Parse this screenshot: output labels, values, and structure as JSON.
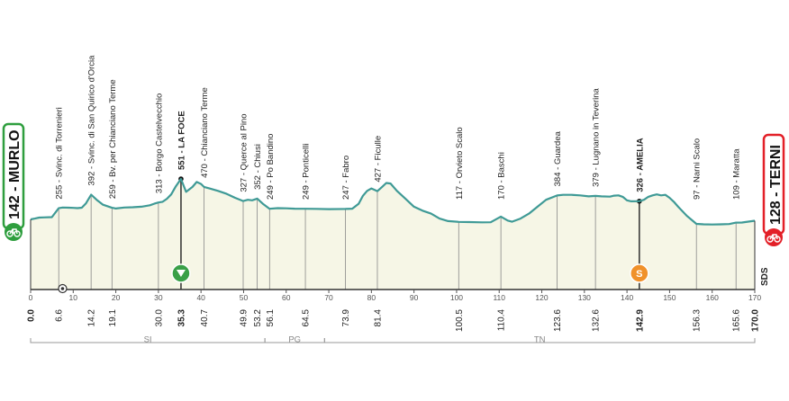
{
  "start": {
    "label": "142 - MURLO",
    "color": "#2e9e3e"
  },
  "finish": {
    "label": "128 - TERNI",
    "color": "#e32028"
  },
  "sponsor_mark": "SDS",
  "colors": {
    "profile_line": "#3f9a96",
    "profile_fill": "#f6f6e6",
    "axis": "#333333",
    "sprint": "#f0912a",
    "kom": "#3aa048"
  },
  "chart_data": {
    "type": "area",
    "title": "",
    "xlabel": "",
    "ylabel": "",
    "xlim": [
      0,
      170
    ],
    "ylim": [
      80,
      560
    ],
    "x_ticks": [
      "0",
      "10",
      "20",
      "30",
      "40",
      "50",
      "60",
      "70",
      "80",
      "90",
      "100",
      "110",
      "120",
      "130",
      "140",
      "150",
      "160",
      "170"
    ],
    "x_tick_values": [
      0,
      10,
      20,
      30,
      40,
      50,
      60,
      70,
      80,
      90,
      100,
      110,
      120,
      130,
      140,
      150,
      160,
      170
    ],
    "profile": [
      [
        0,
        142
      ],
      [
        1,
        150
      ],
      [
        2,
        160
      ],
      [
        3,
        162
      ],
      [
        5,
        165
      ],
      [
        6.6,
        255
      ],
      [
        7.5,
        262
      ],
      [
        9,
        260
      ],
      [
        10,
        258
      ],
      [
        11,
        256
      ],
      [
        12,
        260
      ],
      [
        13,
        305
      ],
      [
        14.2,
        392
      ],
      [
        15.5,
        340
      ],
      [
        17,
        290
      ],
      [
        19.1,
        259
      ],
      [
        20,
        252
      ],
      [
        22,
        262
      ],
      [
        24,
        265
      ],
      [
        26,
        270
      ],
      [
        28,
        285
      ],
      [
        29,
        300
      ],
      [
        30,
        313
      ],
      [
        31,
        320
      ],
      [
        32,
        350
      ],
      [
        33,
        395
      ],
      [
        34,
        470
      ],
      [
        35.3,
        551
      ],
      [
        36.5,
        420
      ],
      [
        38,
        470
      ],
      [
        39,
        520
      ],
      [
        40,
        500
      ],
      [
        40.7,
        470
      ],
      [
        42,
        455
      ],
      [
        44,
        430
      ],
      [
        46,
        400
      ],
      [
        48,
        360
      ],
      [
        49.9,
        327
      ],
      [
        51,
        340
      ],
      [
        52,
        335
      ],
      [
        53.2,
        352
      ],
      [
        54.5,
        300
      ],
      [
        56.1,
        249
      ],
      [
        58,
        256
      ],
      [
        60,
        254
      ],
      [
        62,
        250
      ],
      [
        64.5,
        249
      ],
      [
        67,
        248
      ],
      [
        70,
        246
      ],
      [
        73.9,
        247
      ],
      [
        75.5,
        250
      ],
      [
        77,
        300
      ],
      [
        78,
        380
      ],
      [
        79,
        430
      ],
      [
        80,
        455
      ],
      [
        81.4,
        427
      ],
      [
        82.5,
        470
      ],
      [
        83.5,
        510
      ],
      [
        84.5,
        505
      ],
      [
        86,
        430
      ],
      [
        88,
        350
      ],
      [
        90,
        270
      ],
      [
        92,
        230
      ],
      [
        94,
        200
      ],
      [
        96,
        150
      ],
      [
        98,
        125
      ],
      [
        100.5,
        117
      ],
      [
        103,
        115
      ],
      [
        106,
        112
      ],
      [
        108,
        113
      ],
      [
        110.4,
        170
      ],
      [
        112,
        130
      ],
      [
        113,
        118
      ],
      [
        115,
        150
      ],
      [
        117,
        200
      ],
      [
        119,
        270
      ],
      [
        121,
        340
      ],
      [
        123.6,
        384
      ],
      [
        125,
        390
      ],
      [
        127,
        390
      ],
      [
        129,
        385
      ],
      [
        131,
        375
      ],
      [
        132.6,
        379
      ],
      [
        134,
        375
      ],
      [
        136,
        372
      ],
      [
        137,
        382
      ],
      [
        138,
        385
      ],
      [
        139,
        370
      ],
      [
        140,
        335
      ],
      [
        141,
        325
      ],
      [
        142.9,
        326
      ],
      [
        144,
        340
      ],
      [
        145,
        370
      ],
      [
        146,
        385
      ],
      [
        147,
        395
      ],
      [
        148,
        385
      ],
      [
        149,
        390
      ],
      [
        150,
        360
      ],
      [
        151,
        320
      ],
      [
        152,
        270
      ],
      [
        154,
        180
      ],
      [
        156.3,
        97
      ],
      [
        158,
        92
      ],
      [
        160,
        90
      ],
      [
        162,
        92
      ],
      [
        164,
        95
      ],
      [
        165.6,
        109
      ],
      [
        167,
        110
      ],
      [
        170,
        128
      ]
    ],
    "points": [
      {
        "km": 0,
        "km_label": "0.0",
        "alt": 142,
        "place": "MURLO",
        "bold": true
      },
      {
        "km": 6.6,
        "km_label": "6.6",
        "alt": 255,
        "place": "Svinc. di Torrenieri"
      },
      {
        "km": 14.2,
        "km_label": "14.2",
        "alt": 392,
        "place": "Svinc. di San Quirico d'Orcia"
      },
      {
        "km": 19.1,
        "km_label": "19.1",
        "alt": 259,
        "place": "Bv. per Chianciano Terme"
      },
      {
        "km": 30.0,
        "km_label": "30.0",
        "alt": 313,
        "place": "Borgo Castelvecchio"
      },
      {
        "km": 35.3,
        "km_label": "35.3",
        "alt": 551,
        "place": "LA FOCE",
        "bold": true
      },
      {
        "km": 40.7,
        "km_label": "40.7",
        "alt": 470,
        "place": "Chianciano Terme"
      },
      {
        "km": 49.9,
        "km_label": "49.9",
        "alt": 327,
        "place": "Querce al Pino"
      },
      {
        "km": 53.2,
        "km_label": "53.2",
        "alt": 352,
        "place": "Chiusi"
      },
      {
        "km": 56.1,
        "km_label": "56.1",
        "alt": 249,
        "place": "Po Bandino"
      },
      {
        "km": 64.5,
        "km_label": "64.5",
        "alt": 249,
        "place": "Ponticelli"
      },
      {
        "km": 73.9,
        "km_label": "73.9",
        "alt": 247,
        "place": "Fabro"
      },
      {
        "km": 81.4,
        "km_label": "81.4",
        "alt": 427,
        "place": "Ficulle"
      },
      {
        "km": 100.5,
        "km_label": "100.5",
        "alt": 117,
        "place": "Orvieto Scalo"
      },
      {
        "km": 110.4,
        "km_label": "110.4",
        "alt": 170,
        "place": "Baschi"
      },
      {
        "km": 123.6,
        "km_label": "123.6",
        "alt": 384,
        "place": "Guardea"
      },
      {
        "km": 132.6,
        "km_label": "132.6",
        "alt": 379,
        "place": "Lugnano in Teverina"
      },
      {
        "km": 142.9,
        "km_label": "142.9",
        "alt": 326,
        "place": "AMELIA",
        "bold": true
      },
      {
        "km": 156.3,
        "km_label": "156.3",
        "alt": 97,
        "place": "Narni Scalo"
      },
      {
        "km": 165.6,
        "km_label": "165.6",
        "alt": 109,
        "place": "Maratta"
      },
      {
        "km": 170.0,
        "km_label": "170.0",
        "alt": 128,
        "place": "TERNI",
        "bold": true
      }
    ],
    "markers": [
      {
        "km": 35.3,
        "type": "kom",
        "alt": 551
      },
      {
        "km": 142.9,
        "type": "sprint",
        "alt": 326,
        "label": "S"
      },
      {
        "km": 7.5,
        "type": "feed"
      }
    ],
    "regions": [
      {
        "label": "SI",
        "from": 0,
        "to": 55
      },
      {
        "label": "PG",
        "from": 55,
        "to": 69
      },
      {
        "label": "TN",
        "from": 69,
        "to": 170
      }
    ]
  }
}
